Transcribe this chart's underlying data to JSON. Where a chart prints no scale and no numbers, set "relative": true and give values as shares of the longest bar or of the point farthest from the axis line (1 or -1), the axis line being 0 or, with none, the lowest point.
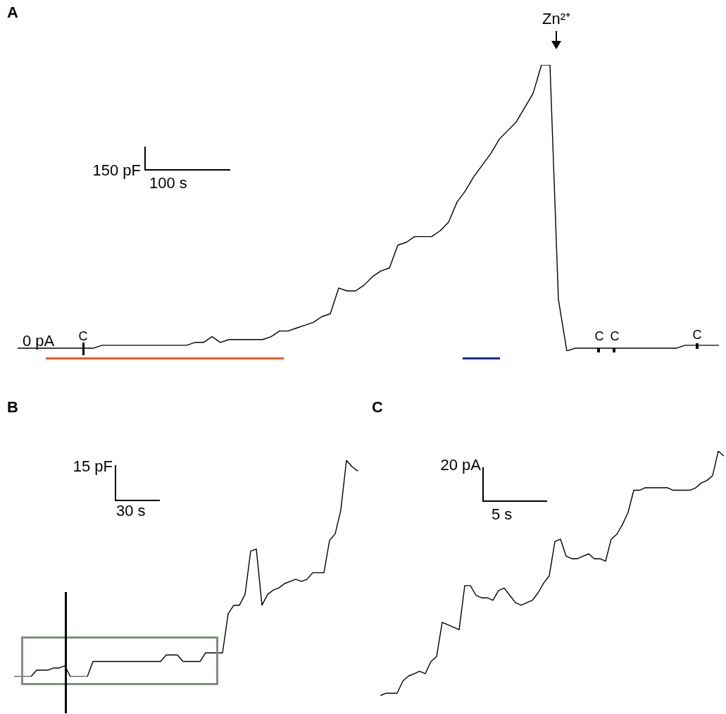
{
  "chart_data": [
    {
      "type": "line",
      "title": "A",
      "relative": true,
      "tick_labels": false,
      "marker": "none",
      "annotations": [
        "0 pA",
        "150 pF",
        "100 s",
        "C",
        "C",
        "C",
        "C",
        "Zn²⁺"
      ],
      "categories": [
        null,
        null,
        null,
        null,
        null,
        null,
        null,
        null,
        null,
        null,
        null,
        null,
        null,
        null,
        null,
        null,
        null,
        null,
        null,
        null,
        null,
        null,
        null,
        null,
        null,
        null,
        null,
        null,
        null,
        null,
        null,
        null,
        null,
        null,
        null,
        null,
        null,
        null,
        null,
        null,
        null,
        null,
        null,
        null,
        null,
        null,
        null,
        null,
        null,
        null,
        null,
        null,
        null,
        null,
        null,
        null,
        null,
        null,
        null,
        null,
        null,
        null,
        null,
        null,
        null,
        null,
        null,
        null,
        null,
        null,
        null,
        null,
        null,
        null,
        null,
        null,
        null,
        null,
        null,
        null,
        null,
        null,
        null,
        null
      ],
      "series": [
        {
          "color": "#000000",
          "values": [
            0.01,
            0.01,
            0.01,
            0.01,
            0.01,
            0.01,
            0.01,
            0.01,
            0.01,
            0.01,
            0.02,
            0.02,
            0.02,
            0.02,
            0.02,
            0.02,
            0.02,
            0.02,
            0.02,
            0.02,
            0.02,
            0.03,
            0.03,
            0.05,
            0.03,
            0.04,
            0.04,
            0.04,
            0.04,
            0.04,
            0.05,
            0.07,
            0.07,
            0.08,
            0.09,
            0.1,
            0.12,
            0.13,
            0.22,
            0.21,
            0.21,
            0.23,
            0.26,
            0.28,
            0.29,
            0.37,
            0.38,
            0.4,
            0.4,
            0.4,
            0.42,
            0.45,
            0.52,
            0.56,
            0.61,
            0.65,
            0.69,
            0.74,
            0.77,
            0.8,
            0.85,
            0.9,
            1.0,
            1.0,
            0.18,
            0,
            0.01,
            0.01,
            0.01,
            0.01,
            0.01,
            0.01,
            0.01,
            0.01,
            0.01,
            0.01,
            0.01,
            0.01,
            0.01,
            0.02,
            0.02,
            0.02,
            0.02,
            0.02
          ]
        }
      ]
    },
    {
      "type": "line",
      "title": "B",
      "relative": true,
      "tick_labels": false,
      "marker": "none",
      "annotations": [
        "15 pF",
        "30 s"
      ],
      "categories": [
        null,
        null,
        null,
        null,
        null,
        null,
        null,
        null,
        null,
        null,
        null,
        null,
        null,
        null,
        null,
        null,
        null,
        null,
        null,
        null,
        null,
        null,
        null,
        null,
        null,
        null,
        null,
        null,
        null,
        null,
        null,
        null,
        null,
        null,
        null,
        null,
        null,
        null,
        null,
        null,
        null,
        null,
        null,
        null,
        null,
        null,
        null,
        null,
        null,
        null,
        null,
        null,
        null,
        null,
        null,
        null,
        null,
        null,
        null,
        null,
        null,
        null
      ],
      "series": [
        {
          "color": "#000000",
          "values": [
            0,
            0,
            0,
            0,
            0.03,
            0.03,
            0.03,
            0.04,
            0.04,
            0.05,
            0,
            0,
            0,
            0,
            0.07,
            0.07,
            0.07,
            0.07,
            0.07,
            0.07,
            0.07,
            0.07,
            0.07,
            0.07,
            0.07,
            0.07,
            0.07,
            0.1,
            0.1,
            0.1,
            0.07,
            0.07,
            0.07,
            0.07,
            0.11,
            0.11,
            0.11,
            0.11,
            0.29,
            0.33,
            0.33,
            0.38,
            0.58,
            0.59,
            0.33,
            0.38,
            0.4,
            0.41,
            0.43,
            0.44,
            0.45,
            0.44,
            0.45,
            0.48,
            0.48,
            0.48,
            0.63,
            0.66,
            0.77,
            1.0,
            0.97,
            0.95
          ]
        }
      ]
    },
    {
      "type": "line",
      "title": "C",
      "relative": true,
      "tick_labels": false,
      "marker": "none",
      "annotations": [
        "20 pA",
        "5 s"
      ],
      "categories": [
        null,
        null,
        null,
        null,
        null,
        null,
        null,
        null,
        null,
        null,
        null,
        null,
        null,
        null,
        null,
        null,
        null,
        null,
        null,
        null,
        null,
        null,
        null,
        null,
        null,
        null,
        null,
        null,
        null,
        null,
        null,
        null,
        null,
        null,
        null,
        null,
        null,
        null,
        null,
        null,
        null,
        null,
        null,
        null,
        null,
        null,
        null,
        null,
        null,
        null,
        null,
        null,
        null,
        null,
        null,
        null,
        null,
        null,
        null,
        null,
        null,
        null
      ],
      "series": [
        {
          "color": "#000000",
          "values": [
            0,
            0.01,
            0.01,
            0.01,
            0.06,
            0.08,
            0.09,
            0.1,
            0.09,
            0.14,
            0.16,
            0.3,
            0.29,
            0.28,
            0.27,
            0.45,
            0.45,
            0.41,
            0.4,
            0.4,
            0.39,
            0.43,
            0.44,
            0.41,
            0.38,
            0.37,
            0.38,
            0.39,
            0.42,
            0.46,
            0.49,
            0.63,
            0.64,
            0.57,
            0.56,
            0.56,
            0.57,
            0.58,
            0.56,
            0.56,
            0.55,
            0.64,
            0.66,
            0.7,
            0.75,
            0.84,
            0.84,
            0.85,
            0.85,
            0.85,
            0.85,
            0.85,
            0.84,
            0.84,
            0.84,
            0.84,
            0.85,
            0.87,
            0.88,
            0.9,
            1.0,
            0.98
          ]
        }
      ]
    }
  ]
}
